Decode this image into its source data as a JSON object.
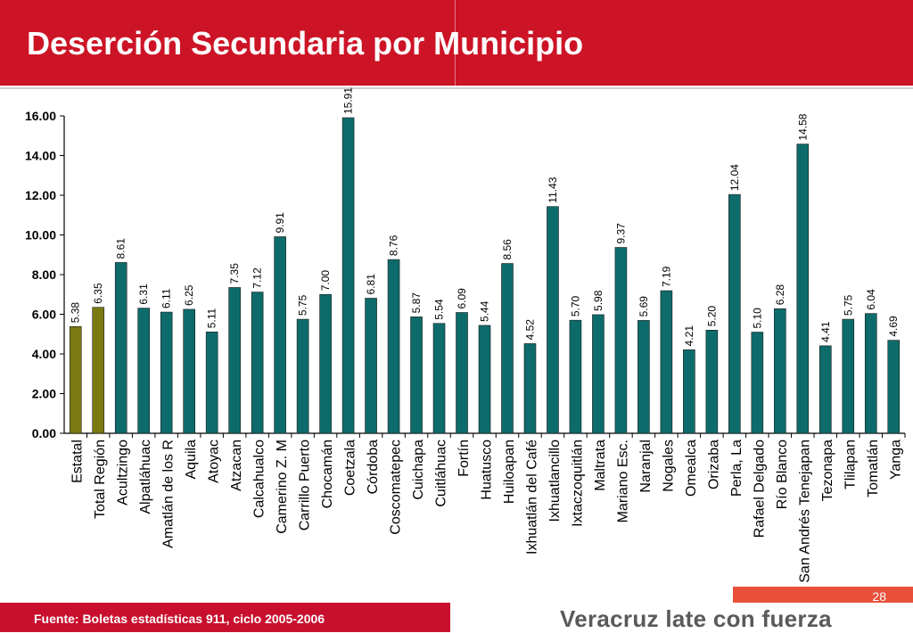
{
  "title": "Deserción Secundaria por Municipio",
  "footer": {
    "source": "Fuente: Boletas estadísticas 911, ciclo 2005-2006",
    "slogan": "Veracruz late con fuerza",
    "page_number": "28"
  },
  "colors": {
    "header_bg": "#cc1426",
    "bar_teal": "#0e6b6b",
    "bar_olive": "#7a7a10"
  },
  "chart_data": {
    "type": "bar",
    "categories": [
      "Estatal",
      "Total Región",
      "Acultzingo",
      "Alpatláhuac",
      "Amatlán de los R",
      "Aquila",
      "Atoyac",
      "Atzacan",
      "Calcahualco",
      "Camerino Z. M",
      "Carrillo Puerto",
      "Chocamán",
      "Coetzala",
      "Córdoba",
      "Coscomatepec",
      "Cuichapa",
      "Cuitláhuac",
      "Fortín",
      "Huatusco",
      "Huiloapan",
      "Ixhuatlán del Café",
      "Ixhuatlancillo",
      "Ixtaczoquitlán",
      "Maltrata",
      "Mariano Esc.",
      "Naranjal",
      "Nogales",
      "Omealca",
      "Orizaba",
      "Perla, La",
      "Rafael Delgado",
      "Río Blanco",
      "San Andrés Tenejapan",
      "Tezonapa",
      "Tlilapan",
      "Tomatlán",
      "Yanga"
    ],
    "values": [
      5.38,
      6.35,
      8.61,
      6.31,
      6.11,
      6.25,
      5.11,
      7.35,
      7.12,
      9.91,
      5.75,
      7.0,
      15.91,
      6.81,
      8.76,
      5.87,
      5.54,
      6.09,
      5.44,
      8.56,
      4.52,
      11.43,
      5.7,
      5.98,
      9.37,
      5.69,
      7.19,
      4.21,
      5.2,
      12.04,
      5.1,
      6.28,
      14.58,
      4.41,
      5.75,
      6.04,
      4.69
    ],
    "value_labels": [
      "5.38",
      "6.35",
      "8.61",
      "6.31",
      "6.11",
      "6.25",
      "5.11",
      "7.35",
      "7.12",
      "9.91",
      "5.75",
      "7.00",
      "15.91",
      "6.81",
      "8.76",
      "5.87",
      "5.54",
      "6.09",
      "5.44",
      "8.56",
      "4.52",
      "11.43",
      "5.70",
      "5.98",
      "9.37",
      "5.69",
      "7.19",
      "4.21",
      "5.20",
      "12.04",
      "5.10",
      "6.28",
      "14.58",
      "4.41",
      "5.75",
      "6.04",
      "4.69"
    ],
    "highlight_count": 2,
    "ylim": [
      0,
      16
    ],
    "yticks": [
      "0.00",
      "2.00",
      "4.00",
      "6.00",
      "8.00",
      "10.00",
      "12.00",
      "14.00",
      "16.00"
    ],
    "grid": false,
    "legend": "none"
  }
}
